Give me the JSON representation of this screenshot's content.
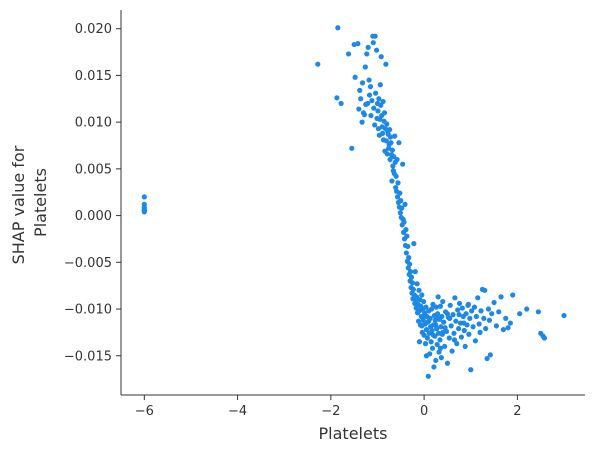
{
  "chart_data": {
    "type": "scatter",
    "title": "",
    "xlabel": "Platelets",
    "ylabel_lines": [
      "SHAP value for",
      "Platelets"
    ],
    "xlim": [
      -6.5,
      3.45
    ],
    "ylim": [
      -0.0192,
      0.022
    ],
    "xticks": [
      -6,
      -4,
      -2,
      0,
      2
    ],
    "xtick_labels": [
      "−6",
      "−4",
      "−2",
      "0",
      "2"
    ],
    "yticks": [
      -0.015,
      -0.01,
      -0.005,
      0.0,
      0.005,
      0.01,
      0.015,
      0.02
    ],
    "ytick_labels": [
      "−0.015",
      "−0.010",
      "−0.005",
      "0.000",
      "0.005",
      "0.010",
      "0.015",
      "0.020"
    ],
    "grid": false,
    "color": "#1e88e5",
    "points": [
      [
        -6.0,
        0.002
      ],
      [
        -6.0,
        0.0012
      ],
      [
        -6.0,
        0.0009
      ],
      [
        -6.0,
        0.0007
      ],
      [
        -6.0,
        0.0005
      ],
      [
        -6.0,
        0.0004
      ],
      [
        -6.0,
        0.0006
      ],
      [
        -2.28,
        0.0162
      ],
      [
        -1.85,
        0.0201
      ],
      [
        -1.87,
        0.0126
      ],
      [
        -1.78,
        0.012
      ],
      [
        -1.62,
        0.0173
      ],
      [
        -1.55,
        0.0072
      ],
      [
        -1.5,
        0.0183
      ],
      [
        -1.48,
        0.0148
      ],
      [
        -1.42,
        0.0184
      ],
      [
        -1.4,
        0.0114
      ],
      [
        -1.38,
        0.0134
      ],
      [
        -1.36,
        0.0125
      ],
      [
        -1.33,
        0.01
      ],
      [
        -1.32,
        0.0142
      ],
      [
        -1.3,
        0.011
      ],
      [
        -1.28,
        0.0108
      ],
      [
        -1.26,
        0.0159
      ],
      [
        -1.25,
        0.0119
      ],
      [
        -1.23,
        0.0173
      ],
      [
        -1.21,
        0.012
      ],
      [
        -1.2,
        0.018
      ],
      [
        -1.18,
        0.0145
      ],
      [
        -1.17,
        0.0129
      ],
      [
        -1.15,
        0.0138
      ],
      [
        -1.14,
        0.0107
      ],
      [
        -1.12,
        0.0123
      ],
      [
        -1.1,
        0.0192
      ],
      [
        -1.09,
        0.0185
      ],
      [
        -1.08,
        0.0115
      ],
      [
        -1.06,
        0.0097
      ],
      [
        -1.05,
        0.0192
      ],
      [
        -1.04,
        0.0131
      ],
      [
        -1.02,
        0.0177
      ],
      [
        -1.01,
        0.0104
      ],
      [
        -1.0,
        0.012
      ],
      [
        -0.99,
        0.0112
      ],
      [
        -0.98,
        0.0093
      ],
      [
        -0.97,
        0.0125
      ],
      [
        -0.96,
        0.0086
      ],
      [
        -0.95,
        0.0103
      ],
      [
        -0.94,
        0.014
      ],
      [
        -0.93,
        0.0118
      ],
      [
        -0.92,
        0.017
      ],
      [
        -0.91,
        0.0107
      ],
      [
        -0.9,
        0.0095
      ],
      [
        -0.89,
        0.0088
      ],
      [
        -0.88,
        0.0122
      ],
      [
        -0.87,
        0.0081
      ],
      [
        -0.86,
        0.0101
      ],
      [
        -0.85,
        0.011
      ],
      [
        -0.84,
        0.0069
      ],
      [
        -0.83,
        0.0093
      ],
      [
        -0.82,
        0.0162
      ],
      [
        -0.81,
        0.008
      ],
      [
        -0.8,
        0.0098
      ],
      [
        -0.79,
        0.0066
      ],
      [
        -0.78,
        0.009
      ],
      [
        -0.77,
        0.0087
      ],
      [
        -0.76,
        0.0072
      ],
      [
        -0.75,
        0.0076
      ],
      [
        -0.74,
        0.0092
      ],
      [
        -0.73,
        0.006
      ],
      [
        -0.72,
        0.0084
      ],
      [
        -0.71,
        0.0078
      ],
      [
        -0.7,
        0.0065
      ],
      [
        -0.69,
        0.0037
      ],
      [
        -0.68,
        0.007
      ],
      [
        -0.67,
        0.0053
      ],
      [
        -0.66,
        0.0048
      ],
      [
        -0.65,
        0.0063
      ],
      [
        -0.64,
        0.0045
      ],
      [
        -0.63,
        0.0085
      ],
      [
        -0.62,
        0.0057
      ],
      [
        -0.61,
        0.003
      ],
      [
        -0.6,
        0.0042
      ],
      [
        -0.59,
        0.0026
      ],
      [
        -0.58,
        0.006
      ],
      [
        -0.57,
        0.002
      ],
      [
        -0.56,
        0.0035
      ],
      [
        -0.55,
        0.0014
      ],
      [
        -0.54,
        0.0078
      ],
      [
        -0.53,
        0.0009
      ],
      [
        -0.52,
        0.0024
      ],
      [
        -0.51,
        0.0003
      ],
      [
        -0.5,
        0.0016
      ],
      [
        -0.49,
        -0.0002
      ],
      [
        -0.48,
        0.0008
      ],
      [
        -0.47,
        -0.001
      ],
      [
        -0.46,
        0.0055
      ],
      [
        -0.45,
        -0.0004
      ],
      [
        -0.44,
        -0.0018
      ],
      [
        -0.43,
        -0.0007
      ],
      [
        -0.42,
        -0.0025
      ],
      [
        -0.41,
        0.0012
      ],
      [
        -0.4,
        -0.0032
      ],
      [
        -0.39,
        -0.0015
      ],
      [
        -0.38,
        -0.004
      ],
      [
        -0.37,
        -0.0022
      ],
      [
        -0.36,
        -0.0049
      ],
      [
        -0.35,
        -0.0033
      ],
      [
        -0.34,
        -0.0056
      ],
      [
        -0.33,
        -0.0045
      ],
      [
        -0.32,
        -0.0063
      ],
      [
        -0.31,
        -0.0052
      ],
      [
        -0.3,
        -0.007
      ],
      [
        -0.29,
        -0.006
      ],
      [
        -0.28,
        -0.0077
      ],
      [
        -0.27,
        -0.0066
      ],
      [
        -0.26,
        -0.0083
      ],
      [
        -0.25,
        -0.0072
      ],
      [
        -0.24,
        -0.0089
      ],
      [
        -0.23,
        -0.0079
      ],
      [
        -0.22,
        -0.003
      ],
      [
        -0.21,
        -0.0085
      ],
      [
        -0.2,
        -0.0094
      ],
      [
        -0.19,
        -0.006
      ],
      [
        -0.18,
        -0.0092
      ],
      [
        -0.17,
        -0.0099
      ],
      [
        -0.16,
        -0.0087
      ],
      [
        -0.15,
        -0.0073
      ],
      [
        -0.14,
        -0.0104
      ],
      [
        -0.13,
        -0.0095
      ],
      [
        -0.12,
        -0.0113
      ],
      [
        -0.11,
        -0.008
      ],
      [
        -0.1,
        -0.0102
      ],
      [
        -0.09,
        -0.009
      ],
      [
        -0.08,
        -0.0117
      ],
      [
        -0.07,
        -0.0097
      ],
      [
        -0.06,
        -0.0108
      ],
      [
        -0.05,
        -0.0085
      ],
      [
        -0.04,
        -0.0125
      ],
      [
        -0.03,
        -0.01
      ],
      [
        -0.02,
        -0.0112
      ],
      [
        -0.01,
        -0.0092
      ],
      [
        0.0,
        -0.0128
      ],
      [
        0.01,
        -0.0104
      ],
      [
        0.02,
        -0.0116
      ],
      [
        0.03,
        -0.0137
      ],
      [
        0.04,
        -0.0098
      ],
      [
        0.05,
        -0.0122
      ],
      [
        0.06,
        -0.0108
      ],
      [
        0.07,
        -0.0131
      ],
      [
        0.08,
        -0.0114
      ],
      [
        0.09,
        -0.0172
      ],
      [
        0.1,
        -0.0102
      ],
      [
        0.11,
        -0.0126
      ],
      [
        0.12,
        -0.0148
      ],
      [
        0.13,
        -0.011
      ],
      [
        0.14,
        -0.0119
      ],
      [
        0.15,
        -0.0135
      ],
      [
        0.16,
        -0.01
      ],
      [
        0.17,
        -0.0123
      ],
      [
        0.18,
        -0.0142
      ],
      [
        0.19,
        -0.0095
      ],
      [
        0.2,
        -0.0117
      ],
      [
        0.21,
        -0.0162
      ],
      [
        0.22,
        -0.0107
      ],
      [
        0.23,
        -0.0129
      ],
      [
        0.24,
        -0.0112
      ],
      [
        0.25,
        -0.0155
      ],
      [
        0.26,
        -0.0098
      ],
      [
        0.27,
        -0.0121
      ],
      [
        0.28,
        -0.0138
      ],
      [
        0.29,
        -0.0105
      ],
      [
        0.3,
        -0.0087
      ],
      [
        0.31,
        -0.0126
      ],
      [
        0.32,
        -0.0146
      ],
      [
        0.33,
        -0.0111
      ],
      [
        0.34,
        -0.0133
      ],
      [
        0.35,
        -0.0097
      ],
      [
        0.36,
        -0.0119
      ],
      [
        0.37,
        -0.0152
      ],
      [
        0.38,
        -0.0108
      ],
      [
        0.39,
        -0.0127
      ],
      [
        0.4,
        -0.0092
      ],
      [
        0.42,
        -0.0114
      ],
      [
        0.44,
        -0.014
      ],
      [
        0.46,
        -0.0103
      ],
      [
        0.48,
        -0.0124
      ],
      [
        0.5,
        -0.0158
      ],
      [
        0.52,
        -0.0109
      ],
      [
        0.54,
        -0.0131
      ],
      [
        0.56,
        -0.0096
      ],
      [
        0.58,
        -0.0118
      ],
      [
        0.6,
        -0.0145
      ],
      [
        0.62,
        -0.0106
      ],
      [
        0.64,
        -0.0126
      ],
      [
        0.66,
        -0.0088
      ],
      [
        0.68,
        -0.0113
      ],
      [
        0.7,
        -0.0137
      ],
      [
        0.72,
        -0.0101
      ],
      [
        0.74,
        -0.0121
      ],
      [
        0.76,
        -0.0094
      ],
      [
        0.78,
        -0.0115
      ],
      [
        0.8,
        -0.013
      ],
      [
        0.82,
        -0.0099
      ],
      [
        0.84,
        -0.0108
      ],
      [
        0.86,
        -0.0123
      ],
      [
        0.88,
        -0.014
      ],
      [
        0.9,
        -0.0105
      ],
      [
        0.92,
        -0.0117
      ],
      [
        0.94,
        -0.0096
      ],
      [
        0.96,
        -0.0127
      ],
      [
        0.98,
        -0.011
      ],
      [
        1.0,
        -0.0165
      ],
      [
        1.02,
        -0.0102
      ],
      [
        1.05,
        -0.0119
      ],
      [
        1.08,
        -0.0098
      ],
      [
        1.1,
        -0.0134
      ],
      [
        1.12,
        -0.0108
      ],
      [
        1.15,
        -0.0088
      ],
      [
        1.18,
        -0.0116
      ],
      [
        1.2,
        -0.0125
      ],
      [
        1.22,
        -0.0102
      ],
      [
        1.25,
        -0.0079
      ],
      [
        1.28,
        -0.011
      ],
      [
        1.3,
        -0.008
      ],
      [
        1.32,
        -0.0121
      ],
      [
        1.35,
        -0.0153
      ],
      [
        1.38,
        -0.01
      ],
      [
        1.4,
        -0.0112
      ],
      [
        1.42,
        -0.0149
      ],
      [
        1.45,
        -0.0105
      ],
      [
        1.5,
        -0.0093
      ],
      [
        1.55,
        -0.0118
      ],
      [
        1.6,
        -0.0103
      ],
      [
        1.65,
        -0.0087
      ],
      [
        1.7,
        -0.0122
      ],
      [
        1.75,
        -0.011
      ],
      [
        1.8,
        -0.012
      ],
      [
        1.85,
        -0.0115
      ],
      [
        1.9,
        -0.0085
      ],
      [
        2.05,
        -0.0105
      ],
      [
        2.2,
        -0.01
      ],
      [
        2.45,
        -0.0103
      ],
      [
        2.5,
        -0.0126
      ],
      [
        2.55,
        -0.0129
      ],
      [
        2.58,
        -0.0131
      ],
      [
        3.0,
        -0.0107
      ],
      [
        -0.1,
        -0.0135
      ],
      [
        0.05,
        -0.015
      ],
      [
        0.15,
        -0.0125
      ],
      [
        0.25,
        -0.0117
      ],
      [
        0.35,
        -0.0142
      ],
      [
        0.45,
        -0.012
      ],
      [
        0.55,
        -0.011
      ],
      [
        0.65,
        -0.0133
      ],
      [
        0.75,
        -0.0106
      ],
      [
        0.85,
        -0.0115
      ],
      [
        0.95,
        -0.0095
      ],
      [
        -0.05,
        -0.0118
      ],
      [
        0.0,
        -0.0108
      ],
      [
        0.1,
        -0.0113
      ],
      [
        0.2,
        -0.0128
      ],
      [
        0.3,
        -0.011
      ],
      [
        0.4,
        -0.0125
      ],
      [
        0.5,
        -0.0105
      ]
    ]
  }
}
